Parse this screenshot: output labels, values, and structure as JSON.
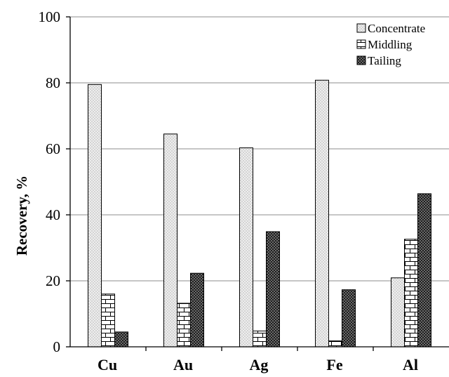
{
  "chart_data": {
    "type": "bar",
    "title": "",
    "xlabel": "",
    "ylabel": "Recovery, %",
    "ylim": [
      0,
      100
    ],
    "yticks": [
      0,
      20,
      40,
      60,
      80,
      100
    ],
    "grid": true,
    "legend_position": "top-right",
    "categories": [
      "Cu",
      "Au",
      "Ag",
      "Fe",
      "Al"
    ],
    "series": [
      {
        "name": "Concentrate",
        "values": [
          79.5,
          64.5,
          60.3,
          80.8,
          20.9
        ],
        "pattern": "dots-light"
      },
      {
        "name": "Middling",
        "values": [
          16.0,
          13.2,
          4.8,
          1.8,
          32.6
        ],
        "pattern": "bricks"
      },
      {
        "name": "Tailing",
        "values": [
          4.5,
          22.3,
          34.9,
          17.3,
          46.4
        ],
        "pattern": "checker-dark"
      }
    ]
  }
}
